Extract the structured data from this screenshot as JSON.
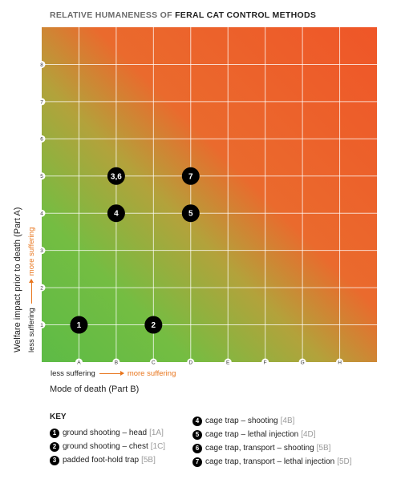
{
  "title": {
    "prefix": "RELATIVE HUMANENESS OF",
    "strong": "FERAL CAT CONTROL METHODS"
  },
  "chart_data": {
    "type": "scatter",
    "title": "RELATIVE HUMANENESS OF FERAL CAT CONTROL METHODS",
    "xlabel": "Mode of death (Part B)",
    "ylabel": "Welfare impact prior to death (Part A)",
    "x_categories": [
      "A",
      "B",
      "C",
      "D",
      "E",
      "F",
      "G",
      "H"
    ],
    "y_ticks": [
      "1",
      "2",
      "3",
      "4",
      "5",
      "6",
      "7",
      "8"
    ],
    "ylim": [
      0,
      8
    ],
    "grid": true,
    "background": "gradient green (bottom-left, less suffering) to red (top-right, more suffering)",
    "points": [
      {
        "label": "1",
        "x": "A",
        "y": 1
      },
      {
        "label": "2",
        "x": "C",
        "y": 1
      },
      {
        "label": "4",
        "x": "B",
        "y": 4
      },
      {
        "label": "5",
        "x": "D",
        "y": 4
      },
      {
        "label": "3,6",
        "x": "B",
        "y": 5
      },
      {
        "label": "7",
        "x": "D",
        "y": 5
      }
    ]
  },
  "axes": {
    "y_title": "Welfare impact prior to death (Part A)",
    "x_title": "Mode of death (Part B)",
    "less_suffering": "less suffering",
    "more_suffering": "more suffering"
  },
  "key": {
    "title": "KEY",
    "items": [
      {
        "num": "1",
        "label": "ground shooting – head",
        "ref": "[1A]"
      },
      {
        "num": "2",
        "label": "ground shooting – chest",
        "ref": "[1C]"
      },
      {
        "num": "3",
        "label": "padded foot-hold trap",
        "ref": "[5B]"
      },
      {
        "num": "4",
        "label": "cage trap – shooting",
        "ref": "[4B]"
      },
      {
        "num": "5",
        "label": "cage trap – lethal injection",
        "ref": "[4D]"
      },
      {
        "num": "6",
        "label": "cage trap, transport – shooting",
        "ref": "[5B]"
      },
      {
        "num": "7",
        "label": "cage trap, transport – lethal injection",
        "ref": "[5D]"
      }
    ]
  },
  "colors": {
    "green": "#6cbf44",
    "yellow": "#b5a33a",
    "red": "#ef5a2a",
    "accent_orange": "#e8761e",
    "marker": "#000000",
    "ref_gray": "#9a9a9a"
  }
}
